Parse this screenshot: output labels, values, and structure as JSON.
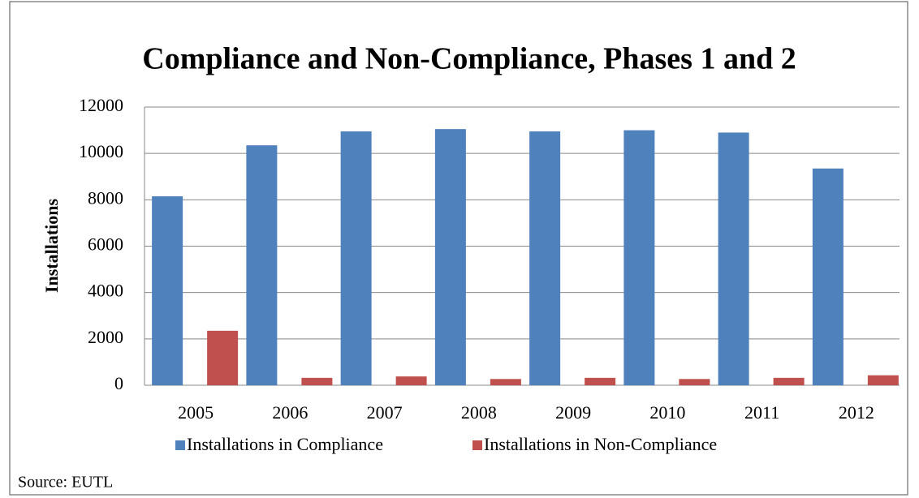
{
  "chart_data": {
    "type": "bar",
    "title": "Compliance and Non-Compliance, Phases 1 and 2",
    "y_label": "Installations",
    "source": "Source: EUTL",
    "categories": [
      "2005",
      "2006",
      "2007",
      "2008",
      "2009",
      "2010",
      "2011",
      "2012"
    ],
    "series": [
      {
        "name": "Installations in Compliance",
        "color": "#4f81bd",
        "values": [
          8150,
          10350,
          10950,
          11050,
          10950,
          11000,
          10900,
          9350
        ]
      },
      {
        "name": "Installations in Non-Compliance",
        "color": "#c0504d",
        "values": [
          2350,
          320,
          380,
          270,
          320,
          270,
          320,
          430
        ]
      }
    ],
    "ylim": [
      0,
      12000
    ],
    "yticks": [
      0,
      2000,
      4000,
      6000,
      8000,
      10000,
      12000
    ],
    "grid": true,
    "legend": "bottom"
  }
}
